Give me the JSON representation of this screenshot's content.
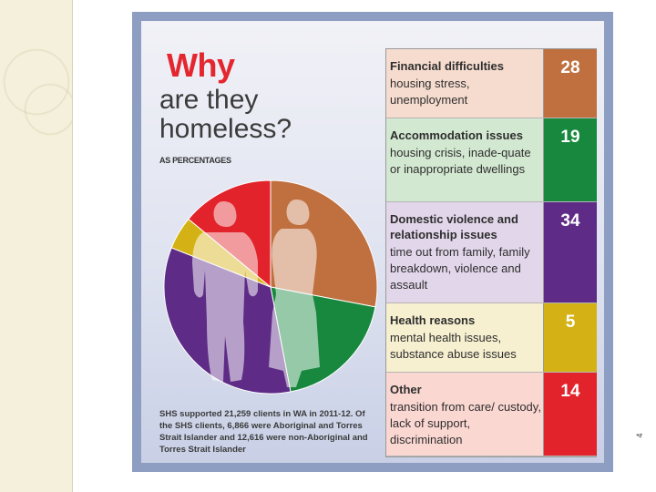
{
  "slide": {
    "number": "4"
  },
  "infographic": {
    "title_line1": "Why",
    "title_line2": "are they homeless?",
    "subtitle": "AS PERCENTAGES",
    "footnote": "SHS supported 21,259 clients in WA in 2011-12. Of the SHS clients, 6,866 were Aboriginal and Torres Strait Islander and 12,616 were non-Aboriginal and Torres Strait Islander",
    "rows": [
      {
        "name": "Financial difficulties",
        "detail": "housing stress, unemployment",
        "value": "28"
      },
      {
        "name": "Accommodation issues",
        "detail": "housing crisis, inade-quate or inappropriate dwellings",
        "value": "19"
      },
      {
        "name": "Domestic violence and relationship issues",
        "detail": "time out from family, family breakdown, violence and assault",
        "value": "34"
      },
      {
        "name": "Health reasons",
        "detail": "mental health issues, substance abuse issues",
        "value": "5"
      },
      {
        "name": "Other",
        "detail": "transition from care/ custody, lack of support, discrimination",
        "value": "14"
      }
    ]
  },
  "chart_data": {
    "type": "pie",
    "title": "Why are they homeless?",
    "subtitle": "AS PERCENTAGES",
    "categories": [
      "Financial difficulties",
      "Accommodation issues",
      "Domestic violence and relationship issues",
      "Health reasons",
      "Other"
    ],
    "values": [
      28,
      19,
      34,
      5,
      14
    ],
    "colors": [
      "#c0703f",
      "#17883e",
      "#5e2b86",
      "#d4b216",
      "#e2232b"
    ],
    "row_backgrounds": [
      "#f6dccf",
      "#d3e8d1",
      "#e2d6ea",
      "#f6efd0",
      "#fbd7d2"
    ]
  }
}
